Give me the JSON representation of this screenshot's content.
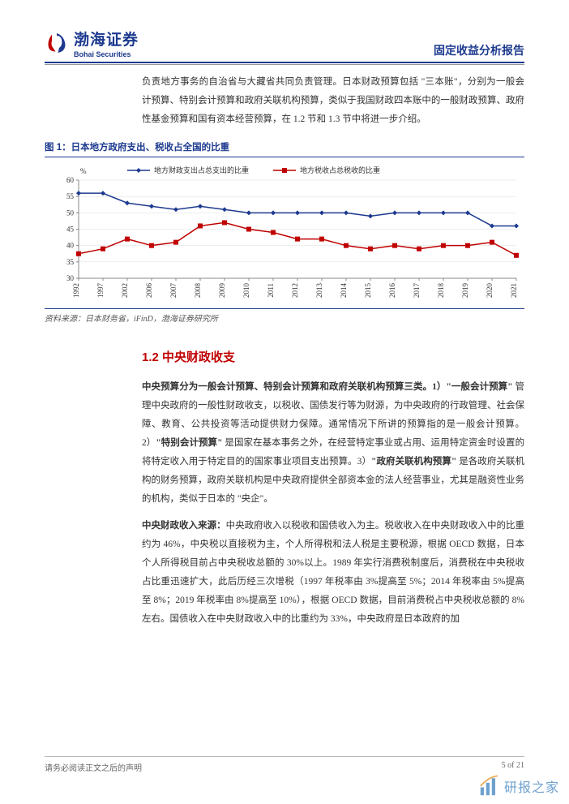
{
  "header": {
    "logo_cn": "渤海证券",
    "logo_en": "Bohai Securities",
    "report_type": "固定收益分析报告"
  },
  "intro_text": "负责地方事务的自治省与大藏省共同负责管理。日本财政预算包括 \"三本账\"，分别为一般会计预算、特别会计预算和政府关联机构预算，类似于我国财政四本账中的一般财政预算、政府性基金预算和国有资本经营预算，在 1.2 节和 1.3 节中将进一步介绍。",
  "chart": {
    "caption": "图 1：日本地方政府支出、税收占全国的比重",
    "type": "line",
    "ylabel": "%",
    "years": [
      1992,
      1997,
      2002,
      2006,
      2007,
      2008,
      2009,
      2010,
      2011,
      2012,
      2013,
      2014,
      2015,
      2016,
      2017,
      2018,
      2019,
      2020,
      2021
    ],
    "series": [
      {
        "name": "地方财政支出占总支出的比重",
        "color": "#1d3a8f",
        "marker": "diamond",
        "values": [
          56,
          56,
          53,
          52,
          51,
          52,
          51,
          50,
          50,
          50,
          50,
          50,
          49,
          50,
          50,
          50,
          50,
          46,
          46
        ]
      },
      {
        "name": "地方税收占总税收的比重",
        "color": "#c00000",
        "marker": "square",
        "values": [
          37.5,
          39,
          42,
          40,
          41,
          46,
          47,
          45,
          44,
          42,
          42,
          40,
          39,
          40,
          39,
          40,
          40,
          41,
          37
        ]
      }
    ],
    "ylim": [
      30,
      60
    ],
    "ytick_step": 5,
    "background_color": "#ffffff",
    "grid_color": "#dddddd",
    "axis_color": "#888888",
    "label_fontsize": 9,
    "legend_fontsize": 9
  },
  "chart_source": "资料来源：日本财务省，iFinD，渤海证券研究所",
  "section_title": "1.2  中央财政收支",
  "para1_parts": {
    "a": "中央预算分为一般会计预算、特别会计预算和政府关联机构预算三类。1）\"一般会计预算\"",
    "b": " 管理中央政府的一般性财政收支，以税收、国债发行等为财源，为中央政府的行政管理、社会保障、教育、公共投资等活动提供财力保障。通常情况下所讲的预算指的是一般会计预算。2）",
    "c": "\"特别会计预算\"",
    "d": " 是国家在基本事务之外，在经营特定事业或占用、运用特定资金时设置的将特定收入用于特定目的的国家事业项目支出预算。3）",
    "e": "\"政府关联机构预算\"",
    "f": " 是各政府关联机构的财务预算，政府关联机构是中央政府提供全部资本金的法人经营事业，尤其是融资性业务的机构，类似于日本的 \"央企\"。"
  },
  "para2_parts": {
    "a": "中央财政收入来源：",
    "b": "中央政府收入以税收和国债收入为主。税收收入在中央财政收入中的比重约为 46%，中央税以直接税为主，个人所得税和法人税是主要税源，根据 OECD 数据，日本个人所得税目前占中央税收总额的 30%以上。1989 年实行消费税制度后，消费税在中央税收占比重迅速扩大，此后历经三次增税（1997 年税率由 3%提高至 5%；2014 年税率由 5%提高至 8%；2019 年税率由 8%提高至 10%），根据 OECD 数据，目前消费税占中央税收总额的 8%左右。国债收入在中央财政收入中的比重约为 33%，中央政府是日本政府的加"
  },
  "footer": {
    "left": "请务必阅读正文之后的声明",
    "right": "5 of 21"
  },
  "watermark": {
    "text": "研报之家"
  }
}
